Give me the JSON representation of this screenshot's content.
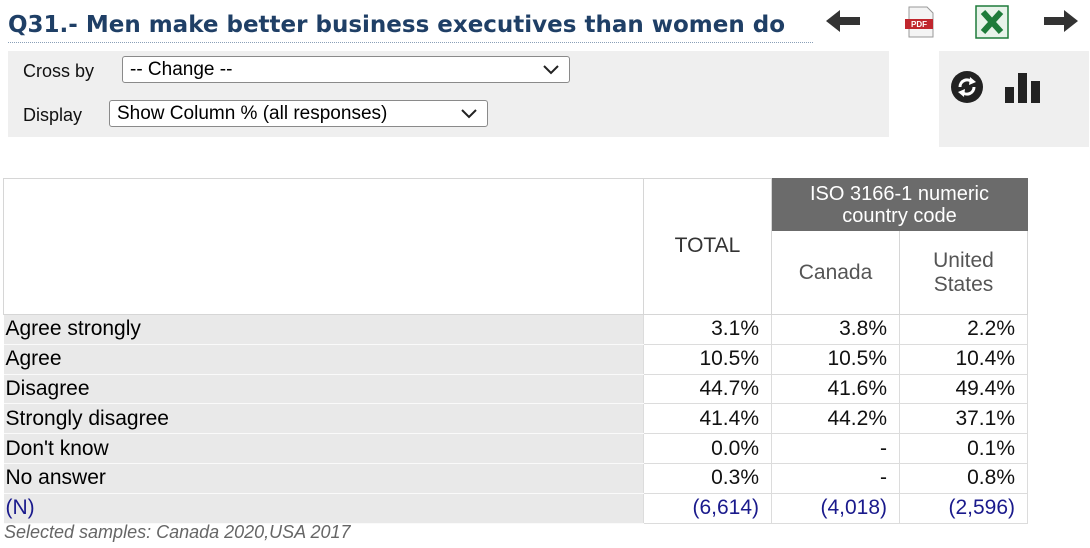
{
  "title": "Q31.- Men make better business executives than women do",
  "toolbar": {
    "back_icon": "arrow-left-icon",
    "pdf_icon": "pdf-icon",
    "pdf_label": "PDF",
    "excel_icon": "excel-icon",
    "forward_icon": "arrow-right-icon"
  },
  "controls": {
    "cross_by_label": "Cross by",
    "cross_by_value": "-- Change --",
    "display_label": "Display",
    "display_value": "Show Column % (all responses)"
  },
  "side_panel": {
    "refresh_icon": "refresh-icon",
    "chart_icon": "bar-chart-icon"
  },
  "table": {
    "total_header": "TOTAL",
    "group_header": "ISO 3166-1 numeric country code",
    "columns": [
      "Canada",
      "United States"
    ],
    "rows": [
      {
        "label": "Agree strongly",
        "total": "3.1%",
        "values": [
          "3.8%",
          "2.2%"
        ]
      },
      {
        "label": "Agree",
        "total": "10.5%",
        "values": [
          "10.5%",
          "10.4%"
        ]
      },
      {
        "label": "Disagree",
        "total": "44.7%",
        "values": [
          "41.6%",
          "49.4%"
        ]
      },
      {
        "label": "Strongly disagree",
        "total": "41.4%",
        "values": [
          "44.2%",
          "37.1%"
        ]
      },
      {
        "label": "Don't know",
        "total": "0.0%",
        "values": [
          "-",
          "0.1%"
        ]
      },
      {
        "label": "No answer",
        "total": "0.3%",
        "values": [
          "-",
          "0.8%"
        ]
      }
    ],
    "n_row": {
      "label": "(N)",
      "total": "(6,614)",
      "values": [
        "(4,018)",
        "(2,596)"
      ]
    }
  },
  "note": "Selected samples: Canada 2020,USA 2017",
  "colors": {
    "title": "#1f3f66",
    "group_header_bg": "#6b6b6b",
    "row_label_bg": "#e9e9e9",
    "n_row_text": "#1a1a8c",
    "excel_green": "#1e7b3a",
    "pdf_red": "#c0262d"
  }
}
